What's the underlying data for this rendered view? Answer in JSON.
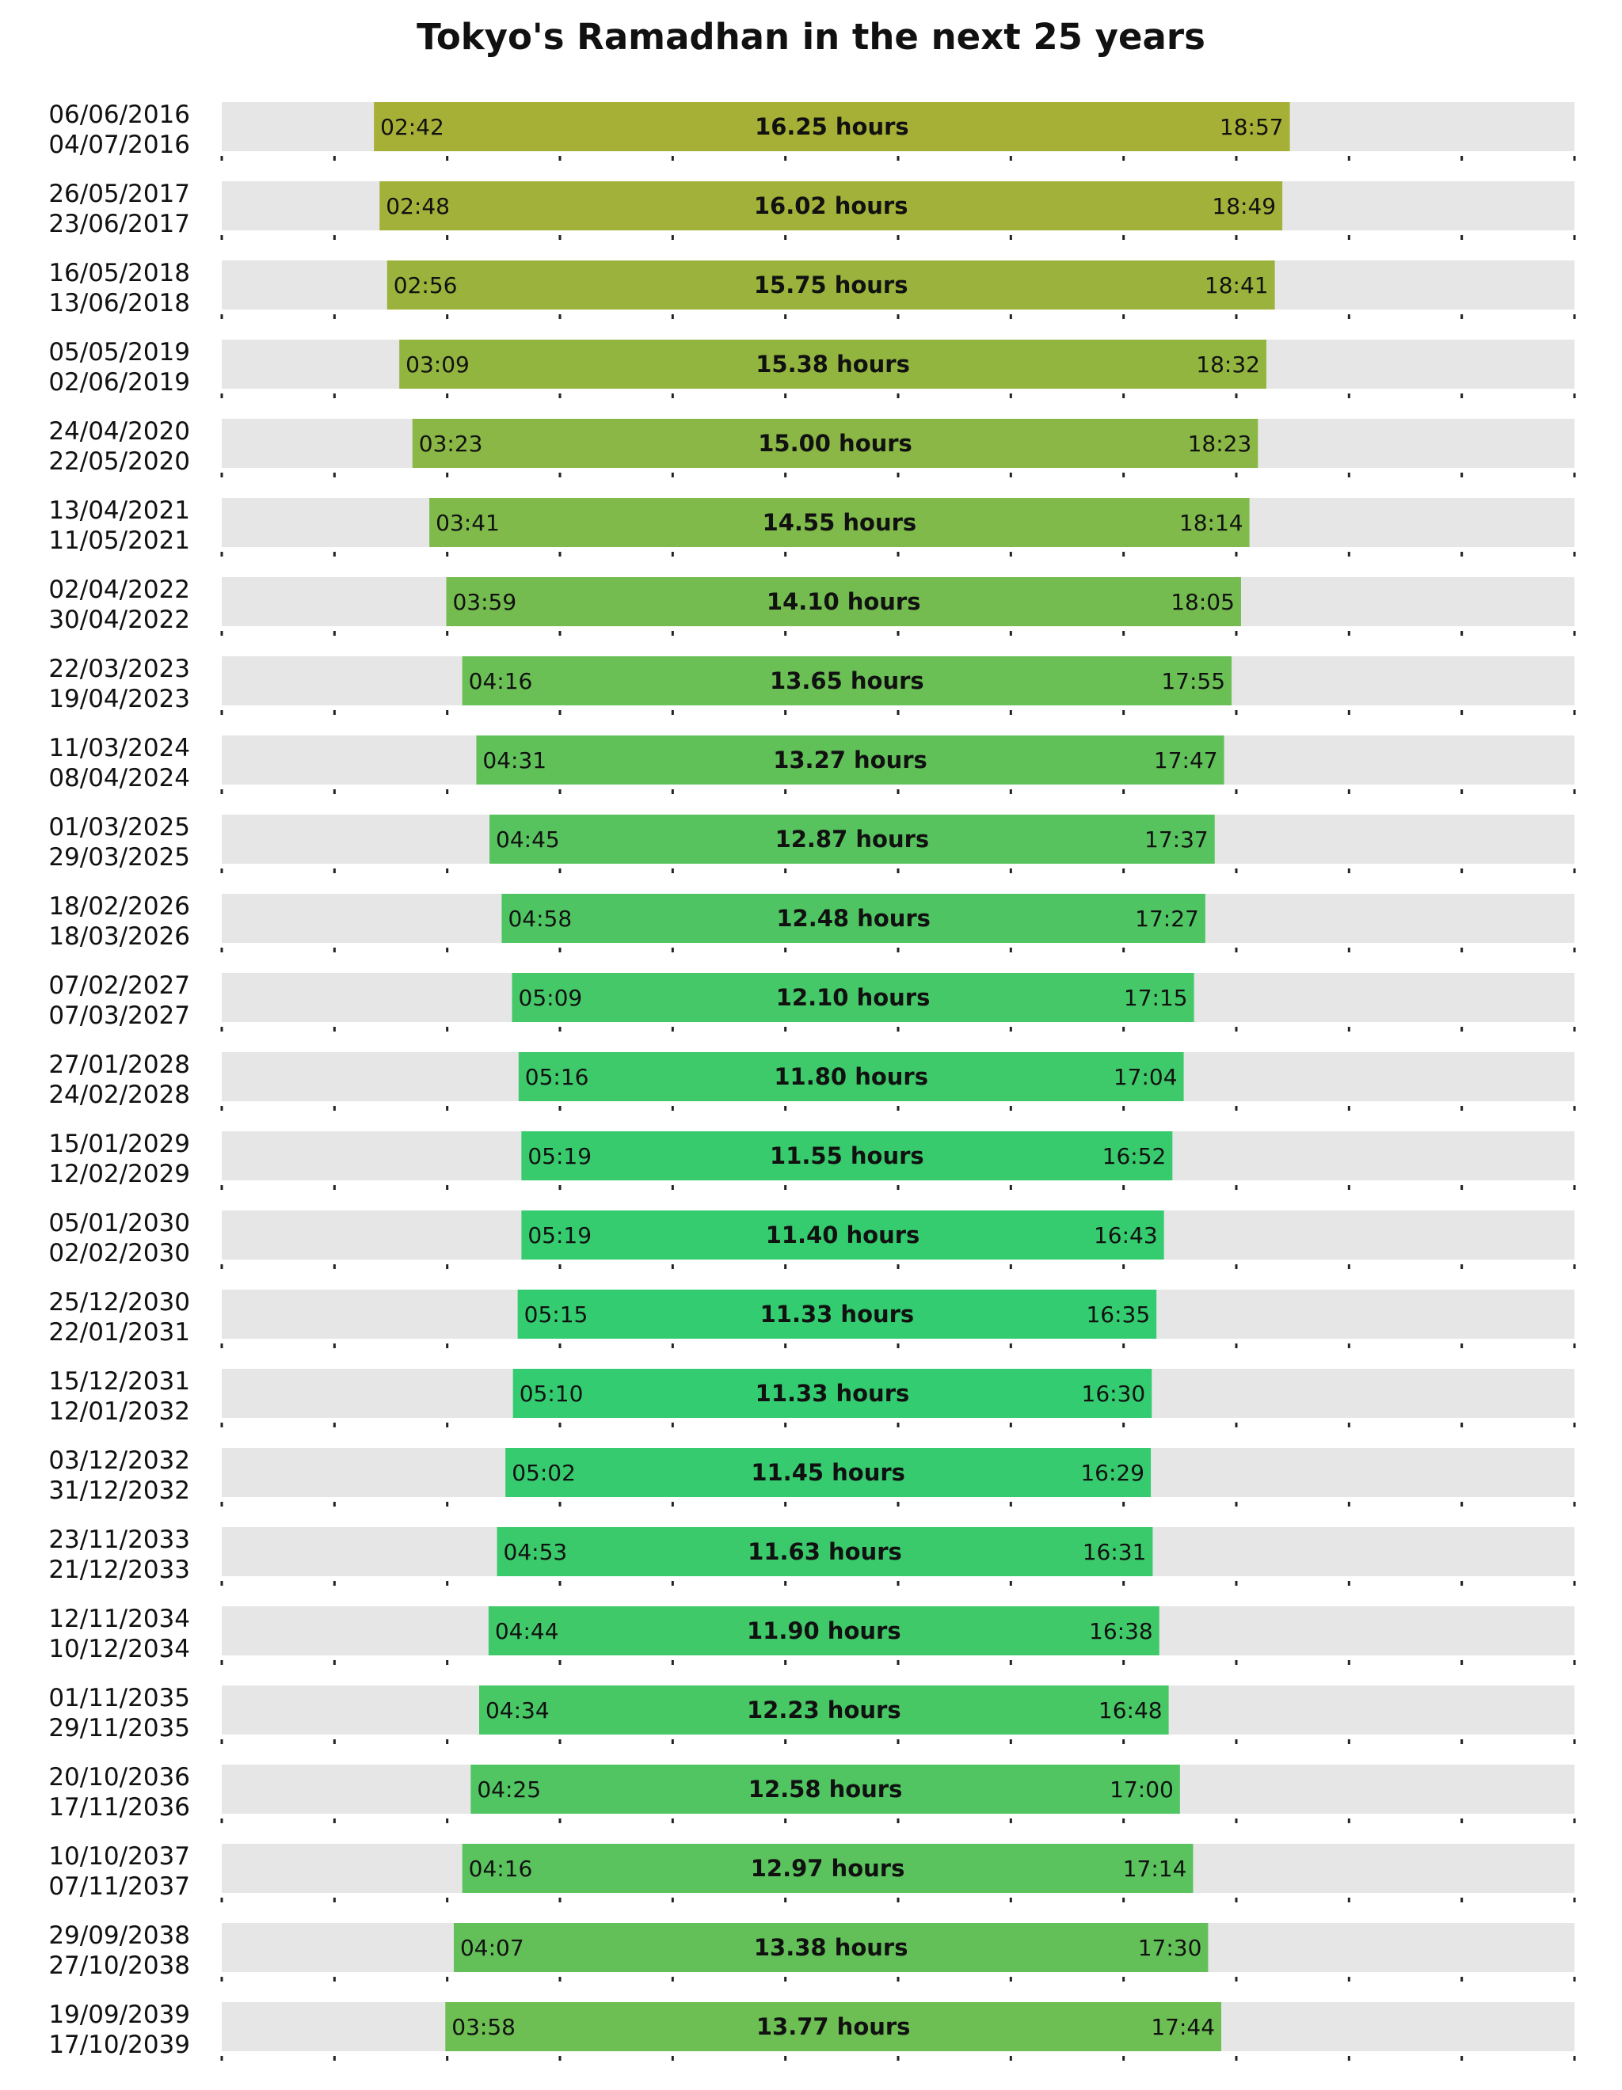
{
  "chart_data": {
    "type": "bar",
    "title": "Tokyo's Ramadhan in the next 25 years",
    "x_range_hours": [
      0,
      24
    ],
    "grid": false,
    "colors": {
      "track": "#e6e6e6",
      "long_fast": "#a7b036",
      "short_fast": "#33cc70",
      "tick": "#222222"
    },
    "rows": [
      {
        "start_date": "06/06/2016",
        "end_date": "04/07/2016",
        "dawn": "02:42",
        "sunset": "18:57",
        "duration": "16.25 hours"
      },
      {
        "start_date": "26/05/2017",
        "end_date": "23/06/2017",
        "dawn": "02:48",
        "sunset": "18:49",
        "duration": "16.02 hours"
      },
      {
        "start_date": "16/05/2018",
        "end_date": "13/06/2018",
        "dawn": "02:56",
        "sunset": "18:41",
        "duration": "15.75 hours"
      },
      {
        "start_date": "05/05/2019",
        "end_date": "02/06/2019",
        "dawn": "03:09",
        "sunset": "18:32",
        "duration": "15.38 hours"
      },
      {
        "start_date": "24/04/2020",
        "end_date": "22/05/2020",
        "dawn": "03:23",
        "sunset": "18:23",
        "duration": "15.00 hours"
      },
      {
        "start_date": "13/04/2021",
        "end_date": "11/05/2021",
        "dawn": "03:41",
        "sunset": "18:14",
        "duration": "14.55 hours"
      },
      {
        "start_date": "02/04/2022",
        "end_date": "30/04/2022",
        "dawn": "03:59",
        "sunset": "18:05",
        "duration": "14.10 hours"
      },
      {
        "start_date": "22/03/2023",
        "end_date": "19/04/2023",
        "dawn": "04:16",
        "sunset": "17:55",
        "duration": "13.65 hours"
      },
      {
        "start_date": "11/03/2024",
        "end_date": "08/04/2024",
        "dawn": "04:31",
        "sunset": "17:47",
        "duration": "13.27 hours"
      },
      {
        "start_date": "01/03/2025",
        "end_date": "29/03/2025",
        "dawn": "04:45",
        "sunset": "17:37",
        "duration": "12.87 hours"
      },
      {
        "start_date": "18/02/2026",
        "end_date": "18/03/2026",
        "dawn": "04:58",
        "sunset": "17:27",
        "duration": "12.48 hours"
      },
      {
        "start_date": "07/02/2027",
        "end_date": "07/03/2027",
        "dawn": "05:09",
        "sunset": "17:15",
        "duration": "12.10 hours"
      },
      {
        "start_date": "27/01/2028",
        "end_date": "24/02/2028",
        "dawn": "05:16",
        "sunset": "17:04",
        "duration": "11.80 hours"
      },
      {
        "start_date": "15/01/2029",
        "end_date": "12/02/2029",
        "dawn": "05:19",
        "sunset": "16:52",
        "duration": "11.55 hours"
      },
      {
        "start_date": "05/01/2030",
        "end_date": "02/02/2030",
        "dawn": "05:19",
        "sunset": "16:43",
        "duration": "11.40 hours"
      },
      {
        "start_date": "25/12/2030",
        "end_date": "22/01/2031",
        "dawn": "05:15",
        "sunset": "16:35",
        "duration": "11.33 hours"
      },
      {
        "start_date": "15/12/2031",
        "end_date": "12/01/2032",
        "dawn": "05:10",
        "sunset": "16:30",
        "duration": "11.33 hours"
      },
      {
        "start_date": "03/12/2032",
        "end_date": "31/12/2032",
        "dawn": "05:02",
        "sunset": "16:29",
        "duration": "11.45 hours"
      },
      {
        "start_date": "23/11/2033",
        "end_date": "21/12/2033",
        "dawn": "04:53",
        "sunset": "16:31",
        "duration": "11.63 hours"
      },
      {
        "start_date": "12/11/2034",
        "end_date": "10/12/2034",
        "dawn": "04:44",
        "sunset": "16:38",
        "duration": "11.90 hours"
      },
      {
        "start_date": "01/11/2035",
        "end_date": "29/11/2035",
        "dawn": "04:34",
        "sunset": "16:48",
        "duration": "12.23 hours"
      },
      {
        "start_date": "20/10/2036",
        "end_date": "17/11/2036",
        "dawn": "04:25",
        "sunset": "17:00",
        "duration": "12.58 hours"
      },
      {
        "start_date": "10/10/2037",
        "end_date": "07/11/2037",
        "dawn": "04:16",
        "sunset": "17:14",
        "duration": "12.97 hours"
      },
      {
        "start_date": "29/09/2038",
        "end_date": "27/10/2038",
        "dawn": "04:07",
        "sunset": "17:30",
        "duration": "13.38 hours"
      },
      {
        "start_date": "19/09/2039",
        "end_date": "17/10/2039",
        "dawn": "03:58",
        "sunset": "17:44",
        "duration": "13.77 hours"
      }
    ]
  }
}
